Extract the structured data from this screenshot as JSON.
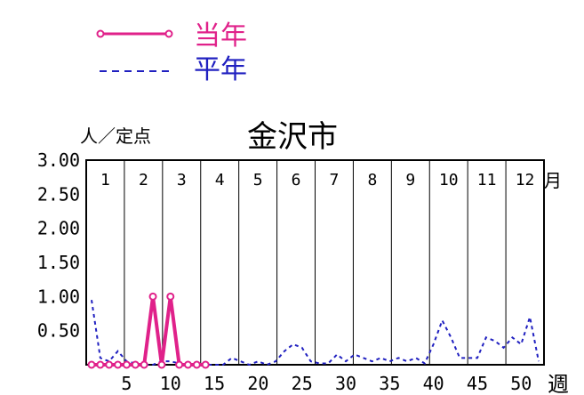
{
  "chart_data": {
    "type": "line",
    "title": "金沢市",
    "ylabel": "人／定点",
    "xlabel": "週",
    "month_unit": "月",
    "ylim": [
      0,
      3.0
    ],
    "xlim": [
      1,
      52
    ],
    "y_ticks": [
      "3.00",
      "2.50",
      "2.00",
      "1.50",
      "1.00",
      "0.50"
    ],
    "x_ticks": [
      5,
      10,
      15,
      20,
      25,
      30,
      35,
      40,
      45,
      50
    ],
    "months": [
      "1",
      "2",
      "3",
      "4",
      "5",
      "6",
      "7",
      "8",
      "9",
      "10",
      "11",
      "12"
    ],
    "colors": {
      "current": "#e0218a",
      "average": "#2020c0",
      "current_text": "#e0218a",
      "average_text": "#2020c0"
    },
    "series": [
      {
        "name": "当年",
        "style": "solid-markers",
        "x": [
          1,
          2,
          3,
          4,
          5,
          6,
          7,
          8,
          9,
          10,
          11,
          12,
          13,
          14
        ],
        "y": [
          0.0,
          0.0,
          0.0,
          0.0,
          0.0,
          0.0,
          0.0,
          1.0,
          0.0,
          1.0,
          0.0,
          0.0,
          0.0,
          0.0
        ]
      },
      {
        "name": "平年",
        "style": "dashed",
        "x": [
          1,
          2,
          3,
          4,
          5,
          6,
          7,
          8,
          9,
          10,
          11,
          12,
          13,
          14,
          15,
          16,
          17,
          18,
          19,
          20,
          21,
          22,
          23,
          24,
          25,
          26,
          27,
          28,
          29,
          30,
          31,
          32,
          33,
          34,
          35,
          36,
          37,
          38,
          39,
          40,
          41,
          42,
          43,
          44,
          45,
          46,
          47,
          48,
          49,
          50,
          51,
          52
        ],
        "y": [
          0.95,
          0.1,
          0.05,
          0.2,
          0.05,
          0.02,
          0.0,
          0.0,
          0.05,
          0.05,
          0.02,
          0.0,
          0.0,
          0.0,
          0.0,
          0.0,
          0.1,
          0.05,
          0.0,
          0.05,
          0.0,
          0.05,
          0.2,
          0.3,
          0.25,
          0.05,
          0.02,
          0.02,
          0.15,
          0.05,
          0.15,
          0.1,
          0.05,
          0.1,
          0.05,
          0.1,
          0.05,
          0.1,
          0.02,
          0.3,
          0.65,
          0.4,
          0.1,
          0.1,
          0.1,
          0.4,
          0.35,
          0.25,
          0.4,
          0.3,
          0.7,
          0.05
        ]
      }
    ]
  }
}
